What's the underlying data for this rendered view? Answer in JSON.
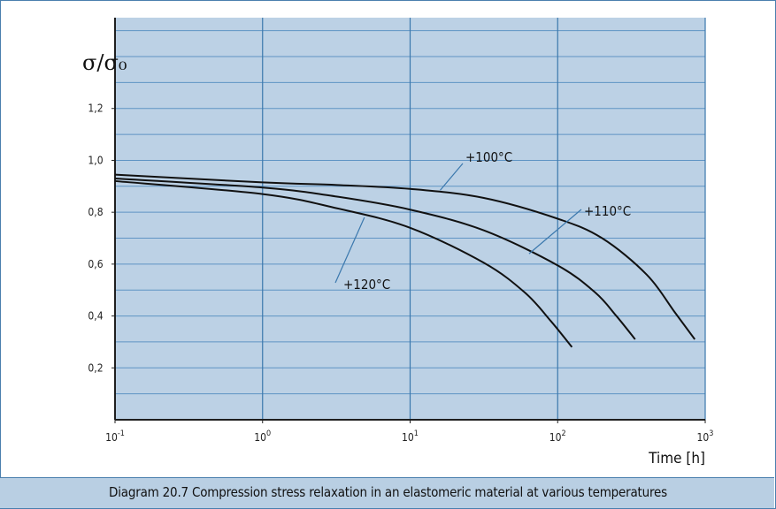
{
  "chart_data": {
    "type": "line",
    "title": "",
    "caption": "Diagram 20.7 Compression stress relaxation in an elastomeric material at various temperatures",
    "ylabel": "σ/σ₀",
    "xlabel": "Time  [h]",
    "x_scale": "log",
    "xlim": [
      0.1,
      1000
    ],
    "ylim": [
      0.0,
      1.55
    ],
    "grid": true,
    "x_ticks": [
      {
        "base": "10",
        "exp": "-1"
      },
      {
        "base": "10",
        "exp": "0"
      },
      {
        "base": "10",
        "exp": "1"
      },
      {
        "base": "10",
        "exp": "2"
      },
      {
        "base": "10",
        "exp": "3"
      }
    ],
    "y_ticks": [
      "0,2",
      "0,4",
      "0,6",
      "0,8",
      "1,0",
      "1,2"
    ],
    "series": [
      {
        "name": "+100°C",
        "x": [
          0.1,
          1,
          3.2,
          10,
          31.6,
          100,
          200,
          400,
          630,
          850
        ],
        "y": [
          0.945,
          0.915,
          0.905,
          0.89,
          0.855,
          0.775,
          0.7,
          0.56,
          0.41,
          0.31
        ]
      },
      {
        "name": "+110°C",
        "x": [
          0.1,
          1,
          3.2,
          10,
          31.6,
          100,
          180,
          250,
          335
        ],
        "y": [
          0.93,
          0.895,
          0.86,
          0.81,
          0.73,
          0.595,
          0.49,
          0.4,
          0.31
        ]
      },
      {
        "name": "+120°C",
        "x": [
          0.1,
          1,
          3.2,
          10,
          31.6,
          60,
          90,
          125
        ],
        "y": [
          0.92,
          0.87,
          0.815,
          0.74,
          0.605,
          0.49,
          0.38,
          0.28
        ]
      }
    ],
    "colors": {
      "plot_bg": "#bcd1e5",
      "grid_major": "#3b78ad",
      "grid_minor": "#5f94c4",
      "axis": "#1f1f1f",
      "line": "#111111",
      "leader": "#3b78ad"
    }
  }
}
